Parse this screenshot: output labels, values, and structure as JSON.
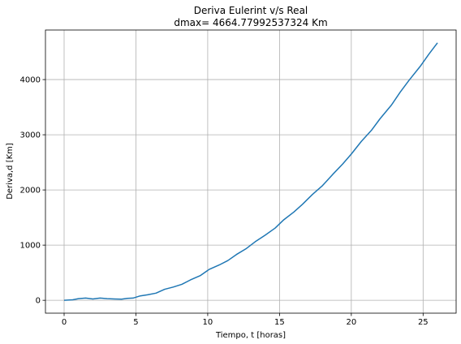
{
  "chart_data": {
    "type": "line",
    "title": "Deriva Eulerint v/s Real",
    "subtitle": "dmax= 4664.77992537324 Km",
    "xlabel": "Tiempo, t [horas]",
    "ylabel": "Deriva,d [Km]",
    "xlim": [
      -1.3,
      27.3
    ],
    "ylim": [
      -233,
      4898
    ],
    "xticks": [
      0,
      5,
      10,
      15,
      20,
      25
    ],
    "yticks": [
      0,
      1000,
      2000,
      3000,
      4000
    ],
    "grid": true,
    "series": [
      {
        "color": "#1f77b4",
        "x": [
          0,
          0.6,
          1.0,
          1.5,
          2.0,
          2.5,
          3.0,
          3.5,
          4.0,
          4.4,
          4.8,
          5.3,
          5.8,
          6.4,
          7.0,
          7.6,
          8.2,
          8.8,
          9.5,
          10.1,
          10.8,
          11.4,
          12.0,
          12.7,
          13.3,
          14.0,
          14.7,
          15.3,
          16.0,
          16.6,
          17.3,
          18.0,
          18.7,
          19.4,
          20.0,
          20.7,
          21.4,
          22.0,
          22.8,
          23.4,
          24.0,
          24.8,
          25.4,
          26.0
        ],
        "y": [
          0,
          10,
          30,
          40,
          25,
          40,
          30,
          25,
          20,
          35,
          40,
          80,
          100,
          130,
          200,
          240,
          290,
          370,
          450,
          560,
          640,
          720,
          830,
          940,
          1060,
          1180,
          1310,
          1460,
          1600,
          1740,
          1920,
          2080,
          2280,
          2470,
          2650,
          2880,
          3080,
          3290,
          3540,
          3770,
          3980,
          4240,
          4460,
          4665
        ]
      }
    ]
  }
}
